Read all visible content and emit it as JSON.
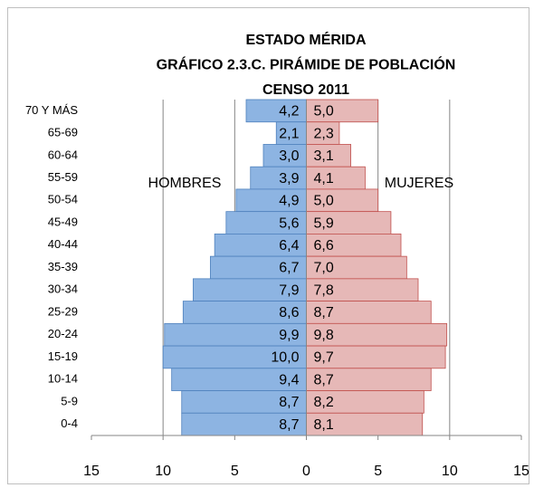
{
  "chart_data": {
    "type": "pyramid",
    "title": [
      "ESTADO MÉRIDA",
      "GRÁFICO 2.3.C. PIRÁMIDE DE POBLACIÓN",
      "CENSO 2011"
    ],
    "categories": [
      "70 Y MÁS",
      "65-69",
      "60-64",
      "55-59",
      "50-54",
      "45-49",
      "40-44",
      "35-39",
      "30-34",
      "25-29",
      "20-24",
      "15-19",
      "10-14",
      "5-9",
      "0-4"
    ],
    "series": [
      {
        "name": "HOMBRES",
        "color": "#8db4e2",
        "side": "left",
        "values": [
          4.2,
          2.1,
          3.0,
          3.9,
          4.9,
          5.6,
          6.4,
          6.7,
          7.9,
          8.6,
          9.9,
          10.0,
          9.4,
          8.7,
          8.7
        ],
        "value_labels": [
          "4,2",
          "2,1",
          "3,0",
          "3,9",
          "4,9",
          "5,6",
          "6,4",
          "6,7",
          "7,9",
          "8,6",
          "9,9",
          "10,0",
          "9,4",
          "8,7",
          "8,7"
        ]
      },
      {
        "name": "MUJERES",
        "color": "#e6b8b7",
        "side": "right",
        "values": [
          5.0,
          2.3,
          3.1,
          4.1,
          5.0,
          5.9,
          6.6,
          7.0,
          7.8,
          8.7,
          9.8,
          9.7,
          8.7,
          8.2,
          8.1
        ],
        "value_labels": [
          "5,0",
          "2,3",
          "3,1",
          "4,1",
          "5,0",
          "5,9",
          "6,6",
          "7,0",
          "7,8",
          "8,7",
          "9,8",
          "9,7",
          "8,7",
          "8,2",
          "8,1"
        ]
      }
    ],
    "xlim": [
      -15,
      15
    ],
    "xticks": [
      {
        "value": -15,
        "label": "15"
      },
      {
        "value": -10,
        "label": "10"
      },
      {
        "value": -5,
        "label": "5"
      },
      0,
      5,
      10,
      15
    ],
    "grid": true
  }
}
